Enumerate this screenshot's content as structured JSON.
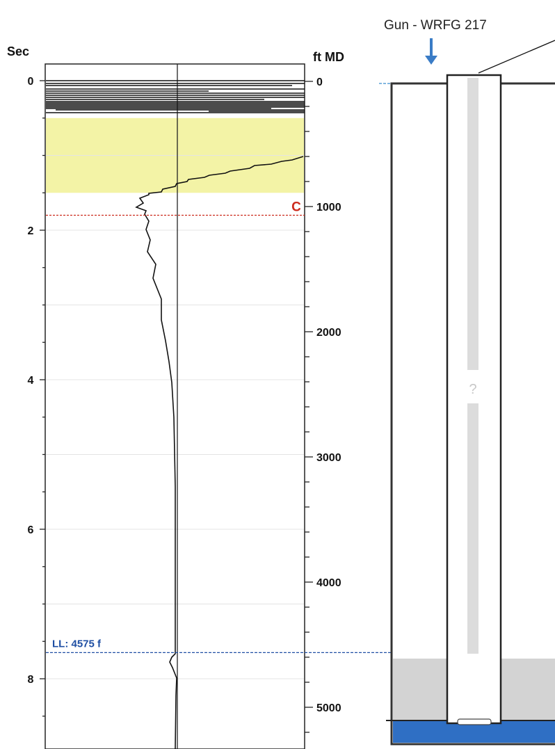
{
  "log": {
    "left_axis_title": "Sec",
    "right_axis_title": "ft MD",
    "sec_ticks": [
      {
        "value": 0,
        "label": "0"
      },
      {
        "value": 2,
        "label": "2"
      },
      {
        "value": 4,
        "label": "4"
      },
      {
        "value": 6,
        "label": "6"
      },
      {
        "value": 8,
        "label": "8"
      }
    ],
    "depth_ticks": [
      {
        "value": 0,
        "label": "0"
      },
      {
        "value": 1000,
        "label": "1000"
      },
      {
        "value": 2000,
        "label": "2000"
      },
      {
        "value": 3000,
        "label": "3000"
      },
      {
        "value": 4000,
        "label": "4000"
      },
      {
        "value": 5000,
        "label": "5000"
      }
    ],
    "highlight_zone_sec": [
      0.5,
      1.5
    ],
    "highlight_color": "#f3f3a6",
    "marker_c": {
      "label": "C",
      "sec": 1.8,
      "color": "#cc2a1c"
    },
    "marker_ll": {
      "label": "LL:  4575 f",
      "sec": 7.65,
      "color": "#1f4fa3"
    }
  },
  "well": {
    "gun_label": "Gun - WRFG 217",
    "arrow_color": "#3a7cc6",
    "question_mark": "?",
    "water_color": "#d3d3d3",
    "bottom_color": "#2f6fc4"
  }
}
